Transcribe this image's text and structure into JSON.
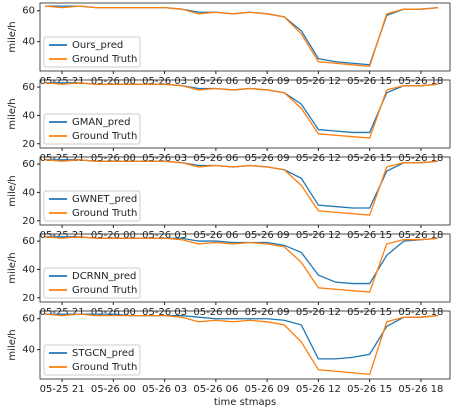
{
  "chart_data": [
    {
      "type": "line",
      "ylabel": "mile/h",
      "ylim": [
        21,
        65
      ],
      "yticks": [
        40,
        60
      ],
      "x": [
        "05-25 20",
        "05-25 21",
        "05-25 22",
        "05-25 23",
        "05-26 00",
        "05-26 01",
        "05-26 02",
        "05-26 03",
        "05-26 04",
        "05-26 05",
        "05-26 06",
        "05-26 07",
        "05-26 08",
        "05-26 09",
        "05-26 10",
        "05-26 11",
        "05-26 12",
        "05-26 13",
        "05-26 14",
        "05-26 15",
        "05-26 16",
        "05-26 17",
        "05-26 18",
        "05-26 19"
      ],
      "xticks": [
        "05-25 21",
        "05-26 00",
        "05-26 03",
        "05-26 06",
        "05-26 09",
        "05-26 12",
        "05-26 15",
        "05-26 18"
      ],
      "series": [
        {
          "name": "Ours_pred",
          "color": "#1f77b4",
          "values": [
            63,
            63,
            63,
            62,
            62,
            62,
            62,
            62,
            61,
            59,
            59,
            58,
            59,
            58,
            56,
            47,
            29,
            27,
            26,
            25,
            57,
            61,
            61,
            62
          ]
        },
        {
          "name": "Ground Truth",
          "color": "#ff7f0e",
          "values": [
            63,
            62,
            63,
            62,
            62,
            62,
            62,
            62,
            61,
            58,
            59,
            58,
            59,
            58,
            56,
            45,
            27,
            26,
            25,
            24,
            58,
            61,
            61,
            62
          ]
        }
      ]
    },
    {
      "type": "line",
      "ylabel": "mile/h",
      "ylim": [
        17,
        65
      ],
      "yticks": [
        20,
        40,
        60
      ],
      "x": [
        "05-25 20",
        "05-25 21",
        "05-25 22",
        "05-25 23",
        "05-26 00",
        "05-26 01",
        "05-26 02",
        "05-26 03",
        "05-26 04",
        "05-26 05",
        "05-26 06",
        "05-26 07",
        "05-26 08",
        "05-26 09",
        "05-26 10",
        "05-26 11",
        "05-26 12",
        "05-26 13",
        "05-26 14",
        "05-26 15",
        "05-26 16",
        "05-26 17",
        "05-26 18",
        "05-26 19"
      ],
      "xticks": [
        "05-25 21",
        "05-26 00",
        "05-26 03",
        "05-26 06",
        "05-26 09",
        "05-26 12",
        "05-26 15",
        "05-26 18"
      ],
      "series": [
        {
          "name": "GMAN_pred",
          "color": "#1f77b4",
          "values": [
            63,
            63,
            63,
            62,
            62,
            62,
            62,
            62,
            61,
            59,
            59,
            58,
            59,
            58,
            56,
            48,
            30,
            29,
            28,
            28,
            56,
            61,
            61,
            62
          ]
        },
        {
          "name": "Ground Truth",
          "color": "#ff7f0e",
          "values": [
            63,
            62,
            63,
            62,
            62,
            62,
            62,
            62,
            61,
            58,
            59,
            58,
            59,
            58,
            56,
            45,
            27,
            26,
            25,
            24,
            58,
            61,
            61,
            62
          ]
        }
      ]
    },
    {
      "type": "line",
      "ylabel": "mile/h",
      "ylim": [
        17,
        65
      ],
      "yticks": [
        20,
        40,
        60
      ],
      "x": [
        "05-25 20",
        "05-25 21",
        "05-25 22",
        "05-25 23",
        "05-26 00",
        "05-26 01",
        "05-26 02",
        "05-26 03",
        "05-26 04",
        "05-26 05",
        "05-26 06",
        "05-26 07",
        "05-26 08",
        "05-26 09",
        "05-26 10",
        "05-26 11",
        "05-26 12",
        "05-26 13",
        "05-26 14",
        "05-26 15",
        "05-26 16",
        "05-26 17",
        "05-26 18",
        "05-26 19"
      ],
      "xticks": [
        "05-25 21",
        "05-26 00",
        "05-26 03",
        "05-26 06",
        "05-26 09",
        "05-26 12",
        "05-26 15",
        "05-26 18"
      ],
      "series": [
        {
          "name": "GWNET_pred",
          "color": "#1f77b4",
          "values": [
            63,
            63,
            63,
            62,
            62,
            62,
            62,
            62,
            61,
            59,
            59,
            58,
            59,
            58,
            56,
            50,
            31,
            30,
            29,
            29,
            55,
            61,
            61,
            62
          ]
        },
        {
          "name": "Ground Truth",
          "color": "#ff7f0e",
          "values": [
            63,
            62,
            63,
            62,
            62,
            62,
            62,
            62,
            61,
            58,
            59,
            58,
            59,
            58,
            56,
            45,
            27,
            26,
            25,
            24,
            58,
            61,
            61,
            62
          ]
        }
      ]
    },
    {
      "type": "line",
      "ylabel": "mile/h",
      "ylim": [
        17,
        65
      ],
      "yticks": [
        20,
        40,
        60
      ],
      "x": [
        "05-25 20",
        "05-25 21",
        "05-25 22",
        "05-25 23",
        "05-26 00",
        "05-26 01",
        "05-26 02",
        "05-26 03",
        "05-26 04",
        "05-26 05",
        "05-26 06",
        "05-26 07",
        "05-26 08",
        "05-26 09",
        "05-26 10",
        "05-26 11",
        "05-26 12",
        "05-26 13",
        "05-26 14",
        "05-26 15",
        "05-26 16",
        "05-26 17",
        "05-26 18",
        "05-26 19"
      ],
      "xticks": [
        "05-25 21",
        "05-26 00",
        "05-26 03",
        "05-26 06",
        "05-26 09",
        "05-26 12",
        "05-26 15",
        "05-26 18"
      ],
      "series": [
        {
          "name": "DCRNN_pred",
          "color": "#1f77b4",
          "values": [
            63,
            63,
            63,
            62,
            62,
            62,
            62,
            62,
            62,
            60,
            60,
            59,
            59,
            59,
            57,
            52,
            36,
            31,
            30,
            30,
            50,
            60,
            61,
            62
          ]
        },
        {
          "name": "Ground Truth",
          "color": "#ff7f0e",
          "values": [
            63,
            62,
            63,
            62,
            62,
            62,
            62,
            62,
            61,
            58,
            59,
            58,
            59,
            58,
            56,
            45,
            27,
            26,
            25,
            24,
            58,
            61,
            61,
            62
          ]
        }
      ]
    },
    {
      "type": "line",
      "ylabel": "mile/h",
      "xlabel": "time stmaps",
      "ylim": [
        21,
        65
      ],
      "yticks": [
        40,
        60
      ],
      "x": [
        "05-25 20",
        "05-25 21",
        "05-25 22",
        "05-25 23",
        "05-26 00",
        "05-26 01",
        "05-26 02",
        "05-26 03",
        "05-26 04",
        "05-26 05",
        "05-26 06",
        "05-26 07",
        "05-26 08",
        "05-26 09",
        "05-26 10",
        "05-26 11",
        "05-26 12",
        "05-26 13",
        "05-26 14",
        "05-26 15",
        "05-26 16",
        "05-26 17",
        "05-26 18",
        "05-26 19"
      ],
      "xticks": [
        "05-25 21",
        "05-26 00",
        "05-26 03",
        "05-26 06",
        "05-26 09",
        "05-26 12",
        "05-26 15",
        "05-26 18"
      ],
      "series": [
        {
          "name": "STGCN_pred",
          "color": "#1f77b4",
          "values": [
            63,
            63,
            63,
            63,
            63,
            62,
            62,
            62,
            62,
            61,
            60,
            60,
            60,
            60,
            59,
            56,
            34,
            34,
            35,
            37,
            55,
            61,
            61,
            62
          ]
        },
        {
          "name": "Ground Truth",
          "color": "#ff7f0e",
          "values": [
            63,
            62,
            63,
            62,
            62,
            62,
            62,
            62,
            61,
            58,
            59,
            58,
            59,
            58,
            56,
            45,
            27,
            26,
            25,
            24,
            58,
            61,
            61,
            62
          ]
        }
      ]
    }
  ]
}
